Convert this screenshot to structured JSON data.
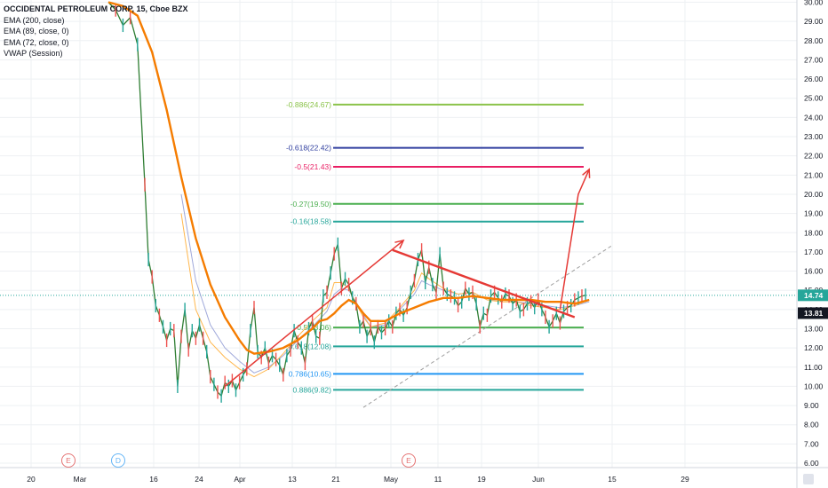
{
  "chart_data": {
    "type": "line",
    "title": "OCCIDENTAL PETROLEUM CORP, 15, Cboe BZX",
    "indicators": [
      "EMA (200, close)",
      "EMA (89, close, 0)",
      "EMA (72, close, 0)",
      "VWAP (Session)"
    ],
    "y_axis": {
      "ylim": [
        5.5,
        30.3
      ],
      "ticks": [
        "6.00",
        "7.00",
        "8.00",
        "9.00",
        "10.00",
        "11.00",
        "12.00",
        "13.00",
        "14.00",
        "15.00",
        "16.00",
        "17.00",
        "18.00",
        "19.00",
        "20.00",
        "21.00",
        "22.00",
        "23.00",
        "24.00",
        "25.00",
        "26.00",
        "27.00",
        "28.00",
        "29.00",
        "30.00"
      ],
      "tick_values": [
        6,
        7,
        8,
        9,
        10,
        11,
        12,
        13,
        14,
        15,
        16,
        17,
        18,
        19,
        20,
        21,
        22,
        23,
        24,
        25,
        26,
        27,
        28,
        29,
        30
      ]
    },
    "x_axis": {
      "ticks": [
        "20",
        "Mar",
        "16",
        "24",
        "Apr",
        "13",
        "21",
        "May",
        "11",
        "19",
        "Jun",
        "15",
        "29"
      ]
    },
    "price_labels": {
      "last": "14.74",
      "last_value": 14.74,
      "secondary": "13.81",
      "secondary_value": 13.81
    },
    "fib_levels": [
      {
        "label": "-0.886(24.67)",
        "value": 24.67,
        "color": "#8bc34a"
      },
      {
        "label": "-0.618(22.42)",
        "value": 22.42,
        "color": "#303f9f"
      },
      {
        "label": "-0.5(21.43)",
        "value": 21.43,
        "color": "#e91e63"
      },
      {
        "label": "-0.27(19.50)",
        "value": 19.5,
        "color": "#4caf50"
      },
      {
        "label": "-0.16(18.58)",
        "value": 18.58,
        "color": "#26a69a"
      },
      {
        "label": "0.5(13.06)",
        "value": 13.06,
        "color": "#4caf50"
      },
      {
        "label": "0.618(12.08)",
        "value": 12.08,
        "color": "#26a69a"
      },
      {
        "label": "0.786(10.65)",
        "value": 10.65,
        "color": "#2196f3"
      },
      {
        "label": "0.886(9.82)",
        "value": 9.82,
        "color": "#26a69a"
      }
    ],
    "events": [
      {
        "label": "E"
      },
      {
        "label": "D"
      },
      {
        "label": "E"
      }
    ],
    "ema200": [
      [
        0,
        30.0
      ],
      [
        2,
        29.8
      ],
      [
        4,
        29.3
      ],
      [
        6,
        27.4
      ],
      [
        8,
        24.4
      ],
      [
        10,
        20.9
      ],
      [
        12,
        17.7
      ],
      [
        14,
        15.3
      ],
      [
        16,
        13.6
      ],
      [
        18,
        12.4
      ],
      [
        19,
        11.9
      ],
      [
        20,
        11.7
      ],
      [
        22,
        11.8
      ],
      [
        24,
        12.0
      ],
      [
        26,
        12.4
      ],
      [
        28,
        13.0
      ],
      [
        29,
        13.4
      ],
      [
        30,
        13.5
      ],
      [
        31,
        13.8
      ],
      [
        32,
        14.2
      ],
      [
        33,
        14.5
      ],
      [
        34,
        14.3
      ],
      [
        35,
        13.8
      ],
      [
        36,
        13.4
      ],
      [
        38,
        13.4
      ],
      [
        40,
        13.8
      ],
      [
        42,
        14.1
      ],
      [
        44,
        14.4
      ],
      [
        46,
        14.6
      ],
      [
        48,
        14.6
      ],
      [
        50,
        14.7
      ],
      [
        52,
        14.6
      ],
      [
        54,
        14.5
      ],
      [
        56,
        14.5
      ],
      [
        58,
        14.5
      ],
      [
        60,
        14.4
      ],
      [
        62,
        14.4
      ],
      [
        64,
        14.3
      ],
      [
        65,
        14.4
      ],
      [
        66,
        14.5
      ]
    ],
    "ema89": [
      [
        10,
        20.0
      ],
      [
        12,
        15.5
      ],
      [
        14,
        13.2
      ],
      [
        16,
        12.0
      ],
      [
        18,
        11.3
      ],
      [
        20,
        10.7
      ],
      [
        22,
        11.0
      ],
      [
        24,
        11.6
      ],
      [
        26,
        12.4
      ],
      [
        28,
        13.1
      ],
      [
        30,
        13.9
      ],
      [
        31,
        14.8
      ],
      [
        32,
        15.1
      ],
      [
        33,
        15.0
      ],
      [
        34,
        14.4
      ],
      [
        35,
        13.7
      ],
      [
        36,
        13.1
      ],
      [
        38,
        13.2
      ],
      [
        40,
        14.0
      ],
      [
        42,
        14.8
      ],
      [
        43,
        15.5
      ],
      [
        44,
        15.3
      ],
      [
        46,
        15.0
      ],
      [
        48,
        14.8
      ],
      [
        50,
        14.9
      ],
      [
        52,
        14.5
      ],
      [
        54,
        14.5
      ],
      [
        56,
        14.4
      ],
      [
        58,
        14.3
      ],
      [
        60,
        14.2
      ],
      [
        62,
        14.1
      ],
      [
        64,
        14.2
      ],
      [
        66,
        14.4
      ]
    ],
    "ema72": [
      [
        10,
        19.0
      ],
      [
        12,
        14.0
      ],
      [
        14,
        12.3
      ],
      [
        16,
        11.5
      ],
      [
        18,
        10.9
      ],
      [
        20,
        10.5
      ],
      [
        22,
        10.9
      ],
      [
        24,
        11.7
      ],
      [
        26,
        12.6
      ],
      [
        28,
        13.4
      ],
      [
        30,
        14.1
      ],
      [
        31,
        15.4
      ],
      [
        32,
        15.4
      ],
      [
        33,
        15.1
      ],
      [
        34,
        14.3
      ],
      [
        35,
        13.6
      ],
      [
        36,
        13.1
      ],
      [
        38,
        13.3
      ],
      [
        40,
        14.1
      ],
      [
        42,
        15.0
      ],
      [
        43,
        15.9
      ],
      [
        44,
        15.6
      ],
      [
        46,
        15.1
      ],
      [
        48,
        14.8
      ],
      [
        50,
        14.9
      ],
      [
        52,
        14.5
      ],
      [
        54,
        14.4
      ],
      [
        56,
        14.4
      ],
      [
        58,
        14.2
      ],
      [
        60,
        14.1
      ],
      [
        62,
        14.0
      ],
      [
        64,
        14.2
      ],
      [
        66,
        14.5
      ]
    ],
    "price": [
      [
        0,
        30.0
      ],
      [
        1,
        29.6
      ],
      [
        2,
        28.8
      ],
      [
        3,
        29.2
      ],
      [
        4,
        27.8
      ],
      [
        5,
        20.5
      ],
      [
        5.5,
        16.6
      ],
      [
        6,
        15.7
      ],
      [
        6.5,
        14.2
      ],
      [
        7,
        13.7
      ],
      [
        7.5,
        13.1
      ],
      [
        8,
        12.4
      ],
      [
        8.5,
        13.0
      ],
      [
        9,
        12.9
      ],
      [
        9.5,
        10.0
      ],
      [
        10,
        12.6
      ],
      [
        10.5,
        14.0
      ],
      [
        11,
        11.9
      ],
      [
        11.5,
        12.9
      ],
      [
        12,
        12.5
      ],
      [
        12.5,
        13.2
      ],
      [
        13,
        12.5
      ],
      [
        13.5,
        11.8
      ],
      [
        14,
        10.5
      ],
      [
        14.5,
        10.1
      ],
      [
        15,
        9.7
      ],
      [
        15.5,
        9.5
      ],
      [
        16,
        10.2
      ],
      [
        16.5,
        10.0
      ],
      [
        17,
        10.3
      ],
      [
        17.5,
        9.8
      ],
      [
        18,
        10.2
      ],
      [
        18.5,
        10.6
      ],
      [
        19,
        10.9
      ],
      [
        19.5,
        12.9
      ],
      [
        20,
        14.1
      ],
      [
        20.5,
        11.8
      ],
      [
        21,
        11.5
      ],
      [
        21.5,
        12.0
      ],
      [
        22,
        11.2
      ],
      [
        22.5,
        11.6
      ],
      [
        23,
        11.4
      ],
      [
        23.5,
        11.1
      ],
      [
        24,
        10.6
      ],
      [
        24.5,
        11.6
      ],
      [
        25,
        11.9
      ],
      [
        25.5,
        12.9
      ],
      [
        26,
        12.3
      ],
      [
        26.5,
        12.0
      ],
      [
        27,
        11.2
      ],
      [
        27.5,
        13.0
      ],
      [
        28,
        13.4
      ],
      [
        28.5,
        12.6
      ],
      [
        29,
        12.5
      ],
      [
        29.5,
        14.7
      ],
      [
        30,
        14.9
      ],
      [
        30.5,
        15.9
      ],
      [
        31,
        16.9
      ],
      [
        31.5,
        17.4
      ],
      [
        32,
        15.1
      ],
      [
        32.5,
        15.6
      ],
      [
        33,
        15.3
      ],
      [
        33.5,
        14.6
      ],
      [
        34,
        14.3
      ],
      [
        34.5,
        13.1
      ],
      [
        35,
        13.4
      ],
      [
        35.5,
        12.6
      ],
      [
        36,
        13.0
      ],
      [
        36.5,
        12.3
      ],
      [
        37,
        13.1
      ],
      [
        37.5,
        12.8
      ],
      [
        38,
        13.0
      ],
      [
        38.5,
        13.4
      ],
      [
        39,
        13.1
      ],
      [
        39.5,
        13.8
      ],
      [
        40,
        14.0
      ],
      [
        40.5,
        13.7
      ],
      [
        41,
        14.1
      ],
      [
        41.5,
        14.9
      ],
      [
        42,
        15.5
      ],
      [
        42.5,
        16.6
      ],
      [
        43,
        17.1
      ],
      [
        43.5,
        15.4
      ],
      [
        44,
        16.2
      ],
      [
        44.5,
        15.3
      ],
      [
        45,
        14.9
      ],
      [
        45.5,
        16.9
      ],
      [
        46,
        15.1
      ],
      [
        46.5,
        14.8
      ],
      [
        47,
        14.7
      ],
      [
        47.5,
        14.6
      ],
      [
        48,
        14.2
      ],
      [
        48.5,
        14.4
      ],
      [
        49,
        15.1
      ],
      [
        49.5,
        14.8
      ],
      [
        50,
        14.9
      ],
      [
        50.5,
        14.3
      ],
      [
        51,
        13.1
      ],
      [
        51.5,
        13.8
      ],
      [
        52,
        13.7
      ],
      [
        52.5,
        14.7
      ],
      [
        53,
        14.9
      ],
      [
        53.5,
        14.6
      ],
      [
        54,
        14.4
      ],
      [
        54.5,
        14.8
      ],
      [
        55,
        14.7
      ],
      [
        55.5,
        14.3
      ],
      [
        56,
        14.5
      ],
      [
        56.5,
        13.9
      ],
      [
        57,
        14.0
      ],
      [
        57.5,
        14.3
      ],
      [
        58,
        14.4
      ],
      [
        58.5,
        14.1
      ],
      [
        59,
        14.5
      ],
      [
        59.5,
        14.0
      ],
      [
        60,
        13.6
      ],
      [
        60.5,
        13.1
      ],
      [
        61,
        13.4
      ],
      [
        61.5,
        13.8
      ],
      [
        62,
        13.3
      ],
      [
        62.5,
        13.9
      ],
      [
        63,
        14.1
      ],
      [
        63.5,
        14.2
      ],
      [
        64,
        14.5
      ],
      [
        64.5,
        14.6
      ],
      [
        65,
        14.7
      ],
      [
        65.5,
        14.74
      ]
    ],
    "annotations": {
      "arrow_up_1": [
        [
          16,
          10.0
        ],
        [
          40.5,
          17.6
        ]
      ],
      "resistance": [
        [
          39,
          17.1
        ],
        [
          64,
          13.6
        ]
      ],
      "projection_arrow": [
        [
          62,
          14.0
        ],
        [
          64.5,
          20.0
        ],
        [
          66,
          21.3
        ]
      ],
      "dashed_trend": [
        [
          35,
          8.9
        ],
        [
          69,
          17.3
        ]
      ]
    }
  }
}
